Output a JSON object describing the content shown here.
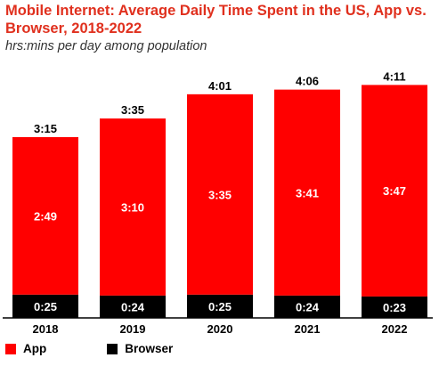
{
  "chart_data": {
    "type": "bar",
    "stacked": true,
    "title": "Mobile Internet: Average Daily Time Spent in the US, App vs. Browser, 2018-2022",
    "subtitle": "hrs:mins per day among population",
    "categories": [
      "2018",
      "2019",
      "2020",
      "2021",
      "2022"
    ],
    "series": [
      {
        "name": "Browser",
        "color": "#000000",
        "values": [
          25,
          24,
          25,
          24,
          23
        ],
        "labels": [
          "0:25",
          "0:24",
          "0:25",
          "0:24",
          "0:23"
        ]
      },
      {
        "name": "App",
        "color": "#ff0000",
        "values": [
          169,
          190,
          215,
          221,
          227
        ],
        "labels": [
          "2:49",
          "3:10",
          "3:35",
          "3:41",
          "3:47"
        ]
      }
    ],
    "totals": {
      "values": [
        195,
        215,
        241,
        246,
        251
      ],
      "labels": [
        "3:15",
        "3:35",
        "4:01",
        "4:06",
        "4:11"
      ]
    },
    "ylim": [
      0,
      280
    ],
    "grid": false,
    "legend_position": "bottom-left"
  },
  "legend": {
    "app_label": "App",
    "browser_label": "Browser",
    "app_color": "#ff0000",
    "browser_color": "#000000"
  }
}
